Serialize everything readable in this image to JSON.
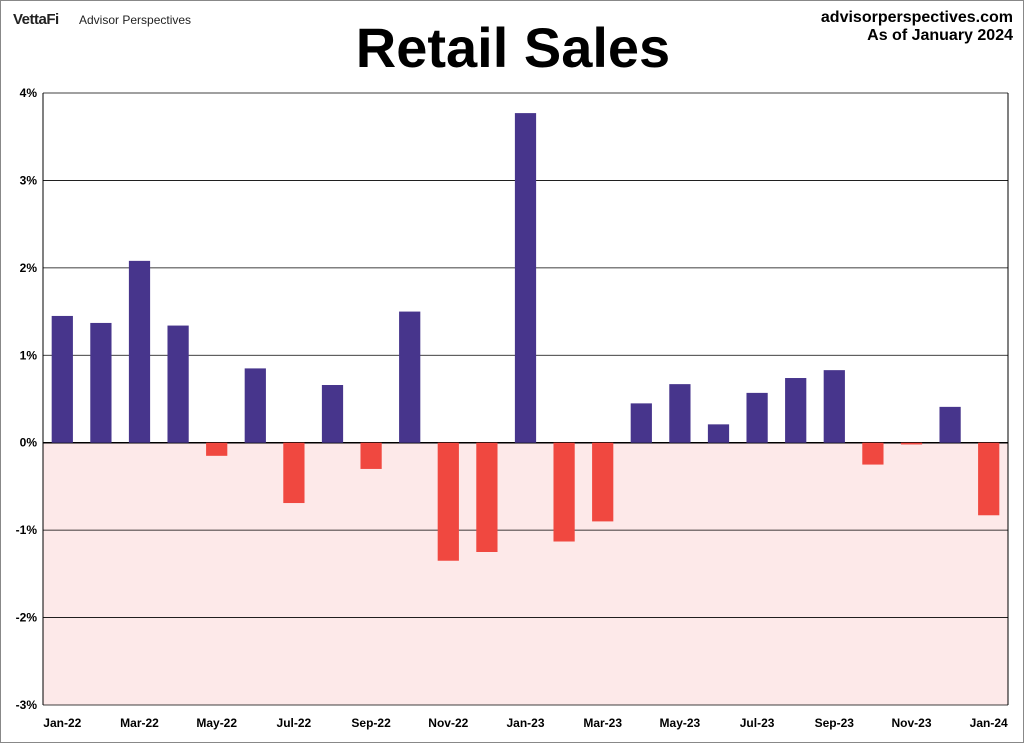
{
  "header": {
    "logo": "VettaFi",
    "logo_subtitle": "Advisor Perspectives",
    "site": "advisorperspectives.com",
    "as_of": "As of January 2024"
  },
  "chart_data": {
    "type": "bar",
    "title": "Retail Sales",
    "xlabel": "",
    "ylabel": "",
    "ylim": [
      -3,
      4
    ],
    "yticks": [
      4,
      3,
      2,
      1,
      0,
      -1,
      -2,
      -3
    ],
    "ytick_labels": [
      "4%",
      "3%",
      "2%",
      "1%",
      "0%",
      "-1%",
      "-2%",
      "-3%"
    ],
    "grid": true,
    "categories": [
      "Jan-22",
      "Feb-22",
      "Mar-22",
      "Apr-22",
      "May-22",
      "Jun-22",
      "Jul-22",
      "Aug-22",
      "Sep-22",
      "Oct-22",
      "Nov-22",
      "Dec-22",
      "Jan-23",
      "Feb-23",
      "Mar-23",
      "Apr-23",
      "May-23",
      "Jun-23",
      "Jul-23",
      "Aug-23",
      "Sep-23",
      "Oct-23",
      "Nov-23",
      "Dec-23",
      "Jan-24"
    ],
    "xtick_labels": [
      "Jan-22",
      "Mar-22",
      "May-22",
      "Jul-22",
      "Sep-22",
      "Nov-22",
      "Jan-23",
      "Mar-23",
      "May-23",
      "Jul-23",
      "Sep-23",
      "Nov-23",
      "Jan-24"
    ],
    "values": [
      1.45,
      1.37,
      2.08,
      1.34,
      -0.15,
      0.85,
      -0.69,
      0.66,
      -0.3,
      1.5,
      -1.35,
      -1.25,
      3.77,
      -1.13,
      -0.9,
      0.45,
      0.67,
      0.21,
      0.57,
      0.74,
      0.83,
      -0.25,
      -0.02,
      0.41,
      -0.83
    ],
    "colors": {
      "positive": "#47358c",
      "negative": "#f04840",
      "negative_zone": "#fde9e9"
    }
  }
}
